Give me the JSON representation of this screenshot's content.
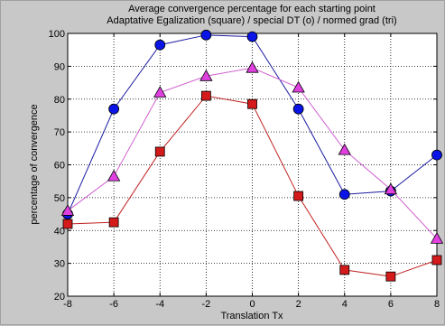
{
  "chart_data": {
    "type": "line",
    "title": [
      "Average convergence percentage for each starting point",
      "Adaptative Egalization (square) / special DT (o) / normed grad (tri)"
    ],
    "xlabel": "Translation Tx",
    "ylabel": "percentage of convergence",
    "x": [
      -8,
      -6,
      -4,
      -2,
      0,
      2,
      4,
      6,
      8
    ],
    "xlim": [
      -8,
      8
    ],
    "ylim": [
      20,
      100
    ],
    "xticks": [
      -8,
      -6,
      -4,
      -2,
      0,
      2,
      4,
      6,
      8
    ],
    "yticks": [
      20,
      30,
      40,
      50,
      60,
      70,
      80,
      90,
      100
    ],
    "grid": true,
    "grid_style": "dotted",
    "series": [
      {
        "marker": "circle",
        "line_color": "#1a1aa0",
        "marker_color": "#0a14e6",
        "values": [
          45,
          77,
          96.5,
          99.5,
          99,
          77,
          51,
          52,
          63
        ]
      },
      {
        "marker": "triangle",
        "line_color": "#d060d0",
        "marker_color": "#e040e0",
        "values": [
          46,
          56.5,
          82,
          87,
          89.5,
          83.5,
          64.5,
          52.5,
          37.5
        ]
      },
      {
        "marker": "square",
        "line_color": "#c02020",
        "marker_color": "#d41a1a",
        "values": [
          42,
          42.5,
          64,
          81,
          78.5,
          50.5,
          28,
          26,
          31
        ]
      }
    ]
  }
}
